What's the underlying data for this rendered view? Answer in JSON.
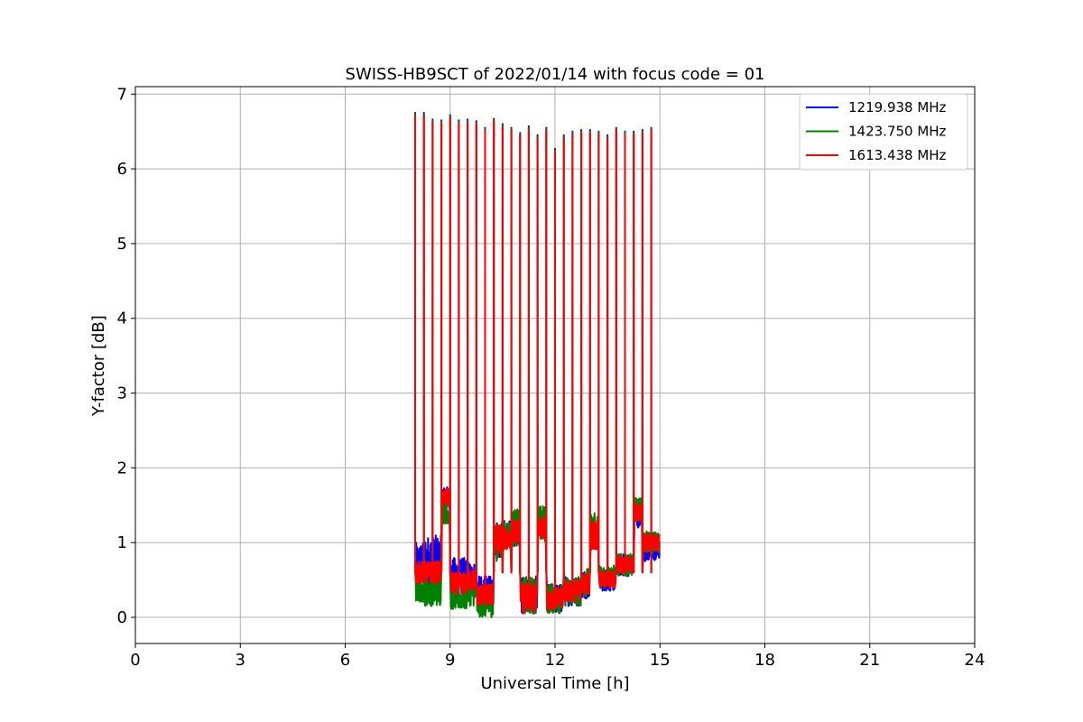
{
  "chart_data": {
    "type": "line",
    "title": "SWISS-HB9SCT of 2022/01/14 with focus code = 01",
    "xlabel": "Universal Time [h]",
    "ylabel": "Y-factor [dB]",
    "xlim": [
      0,
      24
    ],
    "ylim": [
      -0.35,
      7.1
    ],
    "x_ticks": [
      "0",
      "3",
      "6",
      "9",
      "12",
      "15",
      "18",
      "21",
      "24"
    ],
    "y_ticks": [
      "0",
      "1",
      "2",
      "3",
      "4",
      "5",
      "6",
      "7"
    ],
    "grid": true,
    "legend_position": "top-right",
    "data_range_hours": [
      8.0,
      15.0
    ],
    "calibration_spikes": [
      {
        "x": 8.0,
        "y": 6.75
      },
      {
        "x": 8.25,
        "y": 6.75
      },
      {
        "x": 8.5,
        "y": 6.66
      },
      {
        "x": 8.75,
        "y": 6.65
      },
      {
        "x": 9.0,
        "y": 6.72
      },
      {
        "x": 9.25,
        "y": 6.65
      },
      {
        "x": 9.5,
        "y": 6.66
      },
      {
        "x": 9.75,
        "y": 6.64
      },
      {
        "x": 10.0,
        "y": 6.55
      },
      {
        "x": 10.25,
        "y": 6.67
      },
      {
        "x": 10.5,
        "y": 6.6
      },
      {
        "x": 10.75,
        "y": 6.55
      },
      {
        "x": 11.0,
        "y": 6.48
      },
      {
        "x": 11.25,
        "y": 6.57
      },
      {
        "x": 11.5,
        "y": 6.45
      },
      {
        "x": 11.75,
        "y": 6.55
      },
      {
        "x": 12.0,
        "y": 6.27
      },
      {
        "x": 12.25,
        "y": 6.45
      },
      {
        "x": 12.5,
        "y": 6.5
      },
      {
        "x": 12.75,
        "y": 6.52
      },
      {
        "x": 13.0,
        "y": 6.52
      },
      {
        "x": 13.25,
        "y": 6.5
      },
      {
        "x": 13.5,
        "y": 6.45
      },
      {
        "x": 13.75,
        "y": 6.55
      },
      {
        "x": 14.0,
        "y": 6.5
      },
      {
        "x": 14.25,
        "y": 6.5
      },
      {
        "x": 14.5,
        "y": 6.52
      },
      {
        "x": 14.75,
        "y": 6.55
      }
    ],
    "series": [
      {
        "name": "1219.938 MHz",
        "color": "#0000ff",
        "segments": [
          {
            "x_start": 8.0,
            "x_end": 8.25,
            "y_mid": 0.7,
            "spread": 0.3
          },
          {
            "x_start": 8.25,
            "x_end": 8.75,
            "y_mid": 0.75,
            "spread": 0.35
          },
          {
            "x_start": 8.75,
            "x_end": 9.0,
            "y_mid": 1.6,
            "spread": 0.15
          },
          {
            "x_start": 9.0,
            "x_end": 9.5,
            "y_mid": 0.55,
            "spread": 0.25
          },
          {
            "x_start": 9.5,
            "x_end": 9.75,
            "y_mid": 0.5,
            "spread": 0.25
          },
          {
            "x_start": 9.75,
            "x_end": 10.25,
            "y_mid": 0.35,
            "spread": 0.2
          },
          {
            "x_start": 10.25,
            "x_end": 10.5,
            "y_mid": 1.05,
            "spread": 0.25
          },
          {
            "x_start": 10.5,
            "x_end": 10.75,
            "y_mid": 1.1,
            "spread": 0.2
          },
          {
            "x_start": 10.75,
            "x_end": 11.0,
            "y_mid": 1.15,
            "spread": 0.2
          },
          {
            "x_start": 11.0,
            "x_end": 11.5,
            "y_mid": 0.3,
            "spread": 0.25
          },
          {
            "x_start": 11.5,
            "x_end": 11.75,
            "y_mid": 1.25,
            "spread": 0.2
          },
          {
            "x_start": 11.75,
            "x_end": 12.25,
            "y_mid": 0.25,
            "spread": 0.2
          },
          {
            "x_start": 12.25,
            "x_end": 12.75,
            "y_mid": 0.35,
            "spread": 0.2
          },
          {
            "x_start": 12.75,
            "x_end": 13.0,
            "y_mid": 0.45,
            "spread": 0.2
          },
          {
            "x_start": 13.0,
            "x_end": 13.25,
            "y_mid": 1.1,
            "spread": 0.2
          },
          {
            "x_start": 13.25,
            "x_end": 13.75,
            "y_mid": 0.5,
            "spread": 0.15
          },
          {
            "x_start": 13.75,
            "x_end": 14.25,
            "y_mid": 0.7,
            "spread": 0.15
          },
          {
            "x_start": 14.25,
            "x_end": 14.5,
            "y_mid": 1.35,
            "spread": 0.15
          },
          {
            "x_start": 14.5,
            "x_end": 15.0,
            "y_mid": 0.9,
            "spread": 0.15
          }
        ]
      },
      {
        "name": "1423.750 MHz",
        "color": "#008000",
        "segments": [
          {
            "x_start": 8.0,
            "x_end": 8.25,
            "y_mid": 0.35,
            "spread": 0.15
          },
          {
            "x_start": 8.25,
            "x_end": 8.75,
            "y_mid": 0.35,
            "spread": 0.2
          },
          {
            "x_start": 8.75,
            "x_end": 9.0,
            "y_mid": 1.4,
            "spread": 0.15
          },
          {
            "x_start": 9.0,
            "x_end": 9.5,
            "y_mid": 0.25,
            "spread": 0.15
          },
          {
            "x_start": 9.5,
            "x_end": 9.75,
            "y_mid": 0.35,
            "spread": 0.2
          },
          {
            "x_start": 9.75,
            "x_end": 10.25,
            "y_mid": 0.15,
            "spread": 0.15
          },
          {
            "x_start": 10.25,
            "x_end": 10.5,
            "y_mid": 1.0,
            "spread": 0.25
          },
          {
            "x_start": 10.5,
            "x_end": 10.75,
            "y_mid": 1.1,
            "spread": 0.2
          },
          {
            "x_start": 10.75,
            "x_end": 11.0,
            "y_mid": 1.2,
            "spread": 0.25
          },
          {
            "x_start": 11.0,
            "x_end": 11.5,
            "y_mid": 0.3,
            "spread": 0.25
          },
          {
            "x_start": 11.5,
            "x_end": 11.75,
            "y_mid": 1.25,
            "spread": 0.25
          },
          {
            "x_start": 11.75,
            "x_end": 12.25,
            "y_mid": 0.25,
            "spread": 0.2
          },
          {
            "x_start": 12.25,
            "x_end": 12.75,
            "y_mid": 0.35,
            "spread": 0.2
          },
          {
            "x_start": 12.75,
            "x_end": 13.0,
            "y_mid": 0.45,
            "spread": 0.2
          },
          {
            "x_start": 13.0,
            "x_end": 13.25,
            "y_mid": 1.15,
            "spread": 0.25
          },
          {
            "x_start": 13.25,
            "x_end": 13.75,
            "y_mid": 0.55,
            "spread": 0.15
          },
          {
            "x_start": 13.75,
            "x_end": 14.25,
            "y_mid": 0.7,
            "spread": 0.15
          },
          {
            "x_start": 14.25,
            "x_end": 14.5,
            "y_mid": 1.45,
            "spread": 0.15
          },
          {
            "x_start": 14.5,
            "x_end": 15.0,
            "y_mid": 1.0,
            "spread": 0.15
          }
        ]
      },
      {
        "name": "1613.438 MHz",
        "color": "#ff0000",
        "segments": [
          {
            "x_start": 8.0,
            "x_end": 8.25,
            "y_mid": 0.6,
            "spread": 0.15
          },
          {
            "x_start": 8.25,
            "x_end": 8.75,
            "y_mid": 0.6,
            "spread": 0.15
          },
          {
            "x_start": 8.75,
            "x_end": 9.0,
            "y_mid": 1.6,
            "spread": 0.12
          },
          {
            "x_start": 9.0,
            "x_end": 9.5,
            "y_mid": 0.45,
            "spread": 0.15
          },
          {
            "x_start": 9.5,
            "x_end": 9.75,
            "y_mid": 0.5,
            "spread": 0.15
          },
          {
            "x_start": 9.75,
            "x_end": 10.25,
            "y_mid": 0.3,
            "spread": 0.15
          },
          {
            "x_start": 10.25,
            "x_end": 10.5,
            "y_mid": 1.05,
            "spread": 0.2
          },
          {
            "x_start": 10.5,
            "x_end": 10.75,
            "y_mid": 1.05,
            "spread": 0.15
          },
          {
            "x_start": 10.75,
            "x_end": 11.0,
            "y_mid": 1.15,
            "spread": 0.15
          },
          {
            "x_start": 11.0,
            "x_end": 11.5,
            "y_mid": 0.25,
            "spread": 0.2
          },
          {
            "x_start": 11.5,
            "x_end": 11.75,
            "y_mid": 1.2,
            "spread": 0.15
          },
          {
            "x_start": 11.75,
            "x_end": 12.25,
            "y_mid": 0.25,
            "spread": 0.15
          },
          {
            "x_start": 12.25,
            "x_end": 12.75,
            "y_mid": 0.35,
            "spread": 0.15
          },
          {
            "x_start": 12.75,
            "x_end": 13.0,
            "y_mid": 0.45,
            "spread": 0.15
          },
          {
            "x_start": 13.0,
            "x_end": 13.25,
            "y_mid": 1.1,
            "spread": 0.2
          },
          {
            "x_start": 13.25,
            "x_end": 13.75,
            "y_mid": 0.5,
            "spread": 0.12
          },
          {
            "x_start": 13.75,
            "x_end": 14.25,
            "y_mid": 0.7,
            "spread": 0.12
          },
          {
            "x_start": 14.25,
            "x_end": 14.5,
            "y_mid": 1.4,
            "spread": 0.12
          },
          {
            "x_start": 14.5,
            "x_end": 15.0,
            "y_mid": 1.0,
            "spread": 0.12
          }
        ]
      }
    ]
  }
}
